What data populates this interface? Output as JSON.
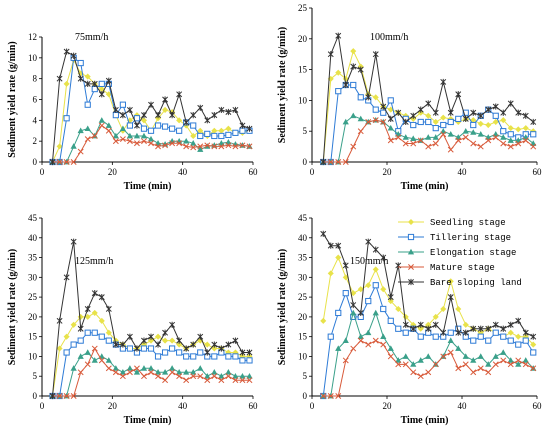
{
  "legend": {
    "entries": [
      {
        "name": "Seedling stage",
        "color": "#e8e24a",
        "marker": "diamond"
      },
      {
        "name": "Tillering stage",
        "color": "#2e7bd6",
        "marker": "square"
      },
      {
        "name": "Elongation stage",
        "color": "#3aa08a",
        "marker": "triangle"
      },
      {
        "name": "Mature stage",
        "color": "#d85a3a",
        "marker": "cross"
      },
      {
        "name": "Bare sloping land",
        "color": "#333333",
        "marker": "star"
      }
    ]
  },
  "chart_data": [
    {
      "type": "line",
      "title": "75mm/h",
      "xlabel": "Time (min)",
      "ylabel": "Sediment yield rate (g/min)",
      "xlim": [
        0,
        60
      ],
      "ylim": [
        0,
        12
      ],
      "xticks": [
        0,
        20,
        40,
        60
      ],
      "yticks": [
        0,
        2,
        4,
        6,
        8,
        10,
        12
      ],
      "x": [
        3,
        5,
        7,
        9,
        11,
        13,
        15,
        17,
        19,
        21,
        23,
        25,
        27,
        29,
        31,
        33,
        35,
        37,
        39,
        41,
        43,
        45,
        47,
        49,
        51,
        53,
        55,
        57,
        59
      ],
      "series": [
        {
          "name": "Seedling stage",
          "values": [
            0,
            1.5,
            7.5,
            9.8,
            8.5,
            8.2,
            7.5,
            7,
            6.5,
            4.5,
            3,
            4,
            4.5,
            4,
            3,
            4.2,
            5,
            4.8,
            4,
            3.5,
            2.5,
            3,
            2.5,
            3,
            3,
            3.2,
            2.8,
            2.8,
            3
          ]
        },
        {
          "name": "Tillering stage",
          "values": [
            0,
            0,
            4.2,
            10,
            9.5,
            5.5,
            7,
            7.5,
            7.5,
            4.5,
            5.5,
            3.5,
            4.2,
            3.2,
            3,
            3.5,
            3.4,
            3.2,
            3,
            3.8,
            3.5,
            2.5,
            2.7,
            2.5,
            2.5,
            2.6,
            2.8,
            3,
            3
          ]
        },
        {
          "name": "Elongation stage",
          "values": [
            0,
            0,
            0,
            1.5,
            3,
            3.2,
            2.5,
            4,
            3.5,
            2.5,
            3.2,
            2.5,
            2.5,
            2.5,
            2.2,
            1.8,
            1.7,
            2,
            2,
            2,
            1.8,
            1.2,
            1.5,
            1.6,
            1.8,
            1.9,
            1.7,
            1.6,
            1.5
          ]
        },
        {
          "name": "Mature stage",
          "values": [
            0,
            0,
            0,
            0,
            1,
            2.2,
            2.5,
            3.5,
            3,
            2,
            2.2,
            2,
            1.8,
            2,
            1.8,
            1.5,
            1.6,
            1.8,
            1.8,
            1.5,
            1.4,
            1.5,
            1.6,
            1.5,
            1.5,
            1.6,
            1.5,
            1.6,
            1.5
          ]
        },
        {
          "name": "Bare sloping land",
          "values": [
            0,
            8,
            10.6,
            10.2,
            8,
            7.5,
            7.5,
            6.5,
            7.8,
            5,
            4.5,
            5,
            3.5,
            4.5,
            5.5,
            4.5,
            6,
            4.5,
            6.5,
            3.8,
            4.5,
            5.2,
            4,
            4.5,
            5,
            4.8,
            5,
            3.5,
            3.2
          ]
        }
      ]
    },
    {
      "type": "line",
      "title": "100mm/h",
      "xlabel": "Time (min)",
      "ylabel": "Sediment yield rate (g/min)",
      "xlim": [
        0,
        60
      ],
      "ylim": [
        0,
        25
      ],
      "xticks": [
        0,
        20,
        40,
        60
      ],
      "yticks": [
        0,
        5,
        10,
        15,
        20,
        25
      ],
      "x": [
        3,
        5,
        7,
        9,
        11,
        13,
        15,
        17,
        19,
        21,
        23,
        25,
        27,
        29,
        31,
        33,
        35,
        37,
        39,
        41,
        43,
        45,
        47,
        49,
        51,
        53,
        55,
        57,
        59
      ],
      "series": [
        {
          "name": "Seedling stage",
          "values": [
            0,
            13.5,
            14.5,
            13.5,
            18,
            15.5,
            11,
            10.5,
            9,
            8.5,
            8,
            7.5,
            7,
            8,
            7.5,
            6.5,
            7.2,
            7,
            6.5,
            7,
            6.8,
            6.2,
            6,
            6.5,
            6.8,
            5.5,
            5.3,
            5.5,
            5
          ]
        },
        {
          "name": "Tillering stage",
          "values": [
            0,
            0,
            11.5,
            12.5,
            12.5,
            10.5,
            10,
            8.5,
            8,
            10,
            5,
            7,
            6,
            6.5,
            6.5,
            5.5,
            6,
            6.5,
            7,
            8,
            6,
            7.5,
            8.5,
            7.5,
            5,
            4.5,
            4,
            4.5,
            4.5
          ]
        },
        {
          "name": "Elongation stage",
          "values": [
            0,
            0,
            0,
            6.5,
            7.5,
            7,
            6.5,
            6.8,
            6.5,
            5.5,
            4.5,
            4,
            3.8,
            3.5,
            4,
            4,
            5,
            4.5,
            4,
            5,
            4.8,
            4.5,
            4,
            4.5,
            4,
            3.5,
            3.5,
            4,
            3
          ]
        },
        {
          "name": "Mature stage",
          "values": [
            0,
            0,
            0,
            0,
            2.5,
            5,
            6.5,
            6.8,
            6.5,
            3.5,
            4,
            3,
            3,
            3.5,
            2.5,
            3,
            4.5,
            2,
            3.5,
            4,
            3,
            2.5,
            3.5,
            4,
            3,
            2.5,
            3,
            3.5,
            2.5
          ]
        },
        {
          "name": "Bare sloping land",
          "values": [
            0,
            17.5,
            20.5,
            12.5,
            15.5,
            15,
            10.5,
            17.5,
            9,
            7,
            8,
            6.5,
            7.5,
            8.5,
            9.5,
            8,
            13,
            8,
            11,
            7,
            8,
            7.5,
            8.5,
            9,
            8,
            9.5,
            8,
            7.5,
            6.5
          ]
        }
      ]
    },
    {
      "type": "line",
      "title": "125mm/h",
      "xlabel": "Time (min)",
      "ylabel": "Sediment yield rate (g/min)",
      "xlim": [
        0,
        60
      ],
      "ylim": [
        0,
        45
      ],
      "xticks": [
        0,
        20,
        40,
        60
      ],
      "yticks": [
        0,
        5,
        10,
        15,
        20,
        25,
        30,
        35,
        40,
        45
      ],
      "x": [
        3,
        5,
        7,
        9,
        11,
        13,
        15,
        17,
        19,
        21,
        23,
        25,
        27,
        29,
        31,
        33,
        35,
        37,
        39,
        41,
        43,
        45,
        47,
        49,
        51,
        53,
        55,
        57,
        59
      ],
      "series": [
        {
          "name": "Seedling stage",
          "values": [
            0,
            12,
            15,
            18,
            20,
            20,
            21,
            19,
            16,
            14,
            13,
            12,
            12,
            13,
            14,
            15,
            14,
            14,
            13,
            12,
            13,
            14,
            13,
            12,
            12,
            11,
            11,
            10,
            10
          ]
        },
        {
          "name": "Tillering stage",
          "values": [
            0,
            0,
            11,
            13,
            14,
            16,
            16,
            15,
            14,
            13,
            12,
            12,
            11,
            12,
            12,
            10,
            11,
            12,
            11,
            10,
            10,
            11,
            10,
            10,
            11,
            10,
            10,
            9,
            9
          ]
        },
        {
          "name": "Elongation stage",
          "values": [
            0,
            0,
            0,
            7,
            10,
            11,
            9,
            10,
            9,
            7,
            6,
            7,
            6,
            7,
            7,
            6,
            6,
            7,
            6,
            6,
            6,
            7,
            5,
            6,
            5,
            6,
            5,
            5,
            5
          ]
        },
        {
          "name": "Mature stage",
          "values": [
            0,
            0,
            0,
            0,
            6,
            8,
            12,
            9,
            7,
            6,
            5,
            6,
            7,
            5,
            6,
            5,
            4,
            6,
            5,
            4,
            5,
            5,
            4,
            5,
            4,
            5,
            4,
            4,
            4
          ]
        },
        {
          "name": "Bare sloping land",
          "values": [
            0,
            19,
            30,
            39,
            17,
            22,
            26,
            25,
            22,
            13,
            13,
            15,
            12,
            14,
            15,
            13,
            16,
            18,
            14,
            12,
            13,
            15,
            11,
            13,
            12,
            13,
            14,
            11,
            11
          ]
        }
      ]
    },
    {
      "type": "line",
      "title": "150mm/h",
      "xlabel": "Time (min)",
      "ylabel": "Sediment yield rate (g/min)",
      "xlim": [
        0,
        60
      ],
      "ylim": [
        0,
        45
      ],
      "xticks": [
        0,
        20,
        40,
        60
      ],
      "yticks": [
        0,
        5,
        10,
        15,
        20,
        25,
        30,
        35,
        40,
        45
      ],
      "x": [
        3,
        5,
        7,
        9,
        11,
        13,
        15,
        17,
        19,
        21,
        23,
        25,
        27,
        29,
        31,
        33,
        35,
        37,
        39,
        41,
        43,
        45,
        47,
        49,
        51,
        53,
        55,
        57,
        59
      ],
      "series": [
        {
          "name": "Seedling stage",
          "values": [
            19,
            31,
            35,
            30,
            26,
            27,
            28,
            32,
            27,
            24,
            22,
            20,
            18,
            17,
            18,
            20,
            22,
            29,
            22,
            18,
            17,
            16,
            17,
            16,
            15,
            16,
            15,
            15,
            13
          ]
        },
        {
          "name": "Tillering stage",
          "values": [
            0,
            15,
            21,
            26,
            20,
            20,
            24,
            28,
            22,
            19,
            17,
            16,
            17,
            15,
            16,
            15,
            15,
            16,
            17,
            15,
            14,
            15,
            14,
            16,
            15,
            14,
            13,
            14,
            11
          ]
        },
        {
          "name": "Elongation stage",
          "values": [
            0,
            0,
            12,
            14,
            21,
            15,
            16,
            21,
            15,
            12,
            9,
            10,
            8,
            9,
            10,
            8,
            10,
            14,
            12,
            10,
            9,
            10,
            8,
            10,
            11,
            9,
            8,
            9,
            7
          ]
        },
        {
          "name": "Mature stage",
          "values": [
            0,
            0,
            0,
            9,
            12,
            14,
            13,
            14,
            13,
            10,
            8,
            8,
            6,
            5,
            6,
            8,
            10,
            11,
            7,
            8,
            6,
            7,
            6,
            8,
            9,
            8,
            9,
            8,
            7
          ]
        },
        {
          "name": "Bare sloping land",
          "values": [
            41,
            38,
            38,
            33,
            23,
            21,
            39,
            37,
            35,
            25,
            33,
            18,
            17,
            18,
            17,
            18,
            16,
            25,
            16,
            16,
            17,
            17,
            17,
            18,
            17,
            18,
            19,
            16,
            15
          ]
        }
      ]
    }
  ]
}
